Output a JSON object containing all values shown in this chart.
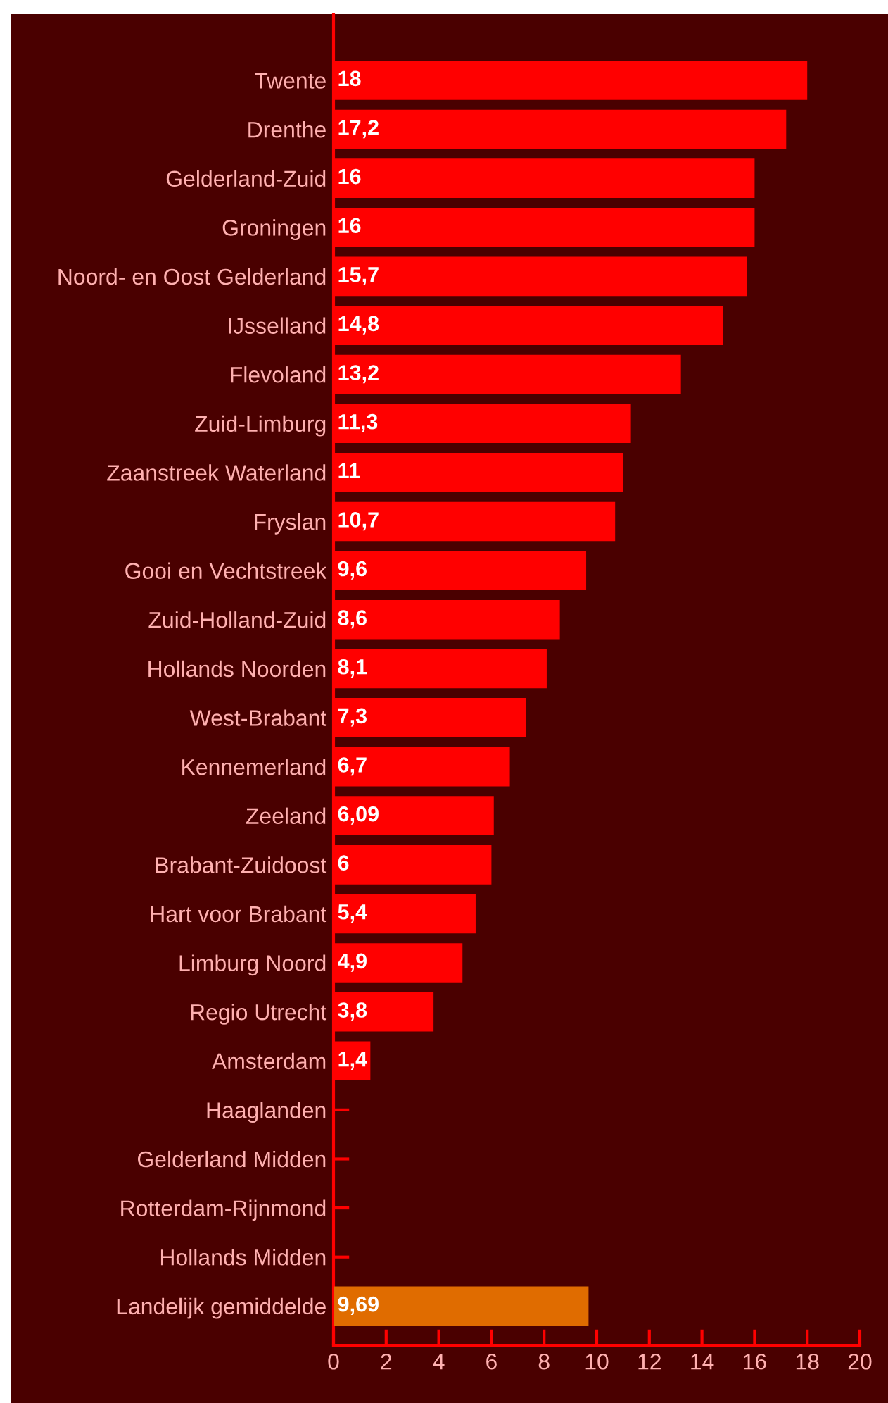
{
  "chart_data": {
    "type": "bar",
    "orientation": "horizontal",
    "categories": [
      "Twente",
      "Drenthe",
      "Gelderland-Zuid",
      "Groningen",
      "Noord- en Oost Gelderland",
      "IJsselland",
      "Flevoland",
      "Zuid-Limburg",
      "Zaanstreek Waterland",
      "Fryslan",
      "Gooi en Vechtstreek",
      "Zuid-Holland-Zuid",
      "Hollands Noorden",
      "West-Brabant",
      "Kennemerland",
      "Zeeland",
      "Brabant-Zuidoost",
      "Hart voor Brabant",
      "Limburg Noord",
      "Regio Utrecht",
      "Amsterdam",
      "Haaglanden",
      "Gelderland Midden",
      "Rotterdam-Rijnmond",
      "Hollands Midden",
      "Landelijk gemiddelde"
    ],
    "values": [
      18,
      17.2,
      16,
      16,
      15.7,
      14.8,
      13.2,
      11.3,
      11,
      10.7,
      9.6,
      8.6,
      8.1,
      7.3,
      6.7,
      6.09,
      6,
      5.4,
      4.9,
      3.8,
      1.4,
      null,
      null,
      null,
      null,
      9.69
    ],
    "value_labels": [
      "18",
      "17,2",
      "16",
      "16",
      "15,7",
      "14,8",
      "13,2",
      "11,3",
      "11",
      "10,7",
      "9,6",
      "8,6",
      "8,1",
      "7,3",
      "6,7",
      "6,09",
      "6",
      "5,4",
      "4,9",
      "3,8",
      "1,4",
      null,
      null,
      null,
      null,
      "9,69"
    ],
    "colors": [
      "#ff0000",
      "#ff0000",
      "#ff0000",
      "#ff0000",
      "#ff0000",
      "#ff0000",
      "#ff0000",
      "#ff0000",
      "#ff0000",
      "#ff0000",
      "#ff0000",
      "#ff0000",
      "#ff0000",
      "#ff0000",
      "#ff0000",
      "#ff0000",
      "#ff0000",
      "#ff0000",
      "#ff0000",
      "#ff0000",
      "#ff0000",
      "#ff0000",
      "#ff0000",
      "#ff0000",
      "#ff0000",
      "#e06c00"
    ],
    "xlim": [
      0,
      20
    ],
    "xticks": [
      0,
      2,
      4,
      6,
      8,
      10,
      12,
      14,
      16,
      18,
      20
    ],
    "grid": false,
    "legend": false
  }
}
